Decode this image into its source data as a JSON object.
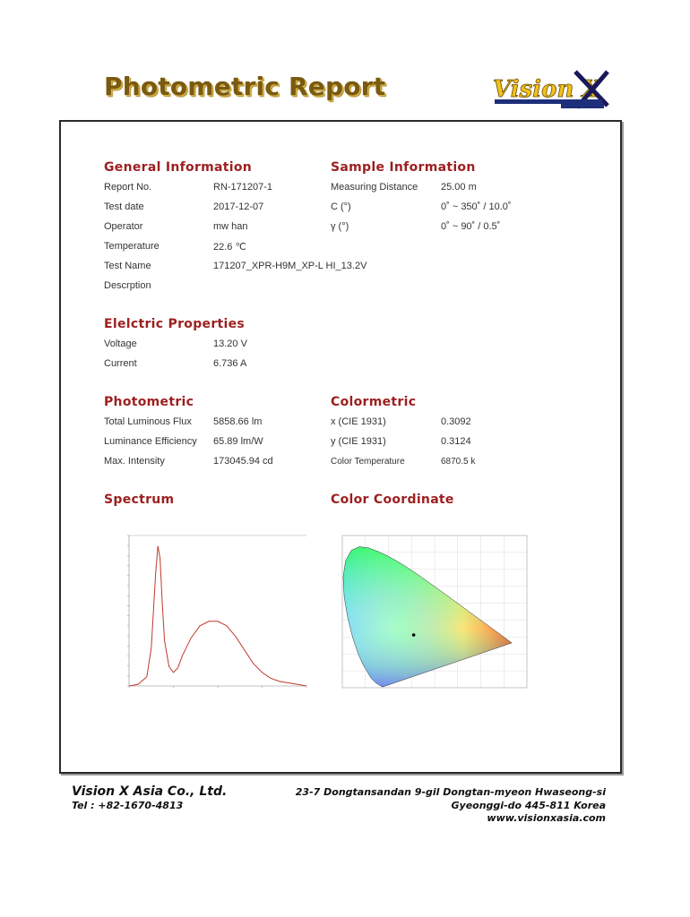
{
  "header": {
    "title": "Photometric Report",
    "logo_text": "Vision X"
  },
  "general": {
    "heading": "General Information",
    "rows": [
      {
        "label": "Report No.",
        "value": "RN-171207-1"
      },
      {
        "label": "Test date",
        "value": "2017-12-07"
      },
      {
        "label": "Operator",
        "value": "mw han"
      },
      {
        "label": "Temperature",
        "value": "22.6 ℃"
      },
      {
        "label": "Test Name",
        "value": "171207_XPR-H9M_XP-L HI_13.2V"
      },
      {
        "label": "Descrption",
        "value": ""
      }
    ]
  },
  "sample": {
    "heading": "Sample Information",
    "rows": [
      {
        "label": "Measuring Distance",
        "value": "25.00 m"
      },
      {
        "label": "C (°)",
        "value": "0˚ ~ 350˚ / 10.0˚"
      },
      {
        "label": "γ (°)",
        "value": "0˚ ~ 90˚ / 0.5˚"
      }
    ]
  },
  "electric": {
    "heading": "Elelctric Properties",
    "rows": [
      {
        "label": "Voltage",
        "value": "13.20 V"
      },
      {
        "label": "Current",
        "value": "6.736 A"
      }
    ]
  },
  "photometric": {
    "heading": "Photometric",
    "rows": [
      {
        "label": "Total Luminous Flux",
        "value": "5858.66 lm"
      },
      {
        "label": "Luminance Efficiency",
        "value": "65.89 lm/W"
      },
      {
        "label": "Max. Intensity",
        "value": "173045.94 cd"
      }
    ]
  },
  "colormetric": {
    "heading": "Colormetric",
    "rows": [
      {
        "label": "x (CIE 1931)",
        "value": "0.3092"
      },
      {
        "label": "y (CIE 1931)",
        "value": "0.3124"
      },
      {
        "label": "Color Temperature",
        "value": "6870.5 k"
      }
    ]
  },
  "spectrum_heading": "Spectrum",
  "color_coordinate_heading": "Color Coordinate",
  "footer": {
    "company": "Vision X Asia Co., Ltd.",
    "tel": "Tel : +82-1670-4813",
    "address_line1": "23-7 Dongtansandan  9-gil Dongtan-myeon Hwaseong-si",
    "address_line2": "Gyeonggi-do 445-811 Korea",
    "website": "www.visionxasia.com"
  },
  "colors": {
    "title": "#7a5a10",
    "section_heading": "#9c1f1f",
    "spectrum_line": "#c0392b"
  },
  "chart_data": [
    {
      "type": "line",
      "x": [
        380,
        400,
        420,
        430,
        440,
        445,
        450,
        455,
        460,
        470,
        480,
        490,
        500,
        520,
        540,
        560,
        580,
        600,
        620,
        640,
        660,
        680,
        700,
        720,
        740,
        760,
        780
      ],
      "values": [
        0.0,
        0.01,
        0.06,
        0.25,
        0.75,
        0.93,
        0.85,
        0.55,
        0.3,
        0.13,
        0.09,
        0.12,
        0.2,
        0.32,
        0.4,
        0.43,
        0.43,
        0.4,
        0.33,
        0.24,
        0.15,
        0.09,
        0.05,
        0.03,
        0.02,
        0.01,
        0.0
      ],
      "xlim": [
        380,
        780
      ],
      "ylim": [
        0,
        1
      ],
      "grid": false
    },
    {
      "type": "scatter",
      "x": [
        0.3092
      ],
      "y": [
        0.3124
      ],
      "xlim": [
        0,
        0.8
      ],
      "ylim": [
        0,
        0.9
      ],
      "grid": true
    }
  ]
}
